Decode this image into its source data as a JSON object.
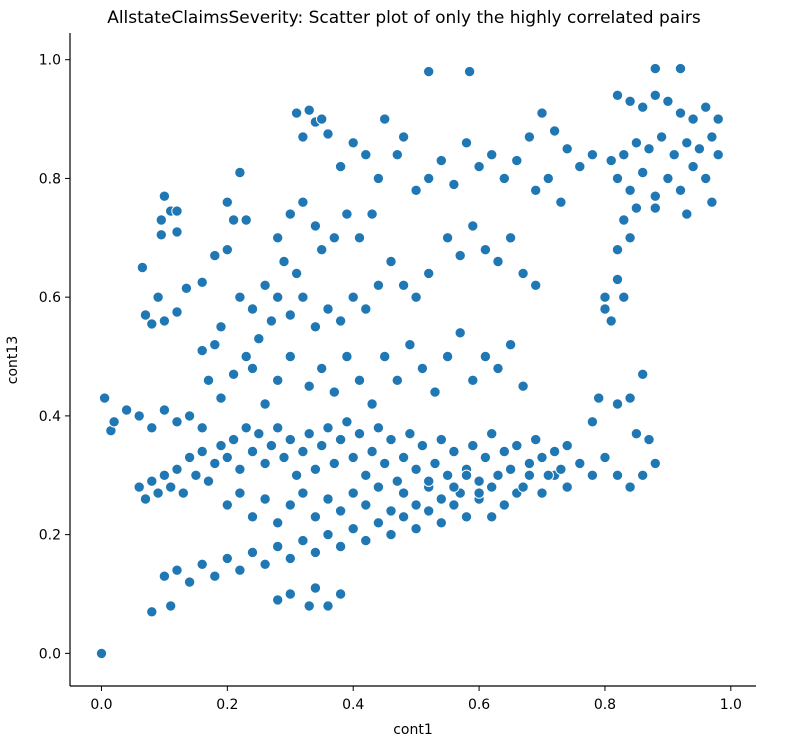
{
  "chart_data": {
    "type": "scatter",
    "title": "AllstateClaimsSeverity: Scatter plot of only the highly correlated pairs",
    "xlabel": "cont1",
    "ylabel": "cont13",
    "xlim": [
      -0.05,
      1.04
    ],
    "ylim": [
      -0.055,
      1.045
    ],
    "xticks": [
      0.0,
      0.2,
      0.4,
      0.6,
      0.8,
      1.0
    ],
    "yticks": [
      0.0,
      0.2,
      0.4,
      0.6,
      0.8,
      1.0
    ],
    "xtick_labels": [
      "0.0",
      "0.2",
      "0.4",
      "0.6",
      "0.8",
      "1.0"
    ],
    "ytick_labels": [
      "0.0",
      "0.2",
      "0.4",
      "0.6",
      "0.8",
      "1.0"
    ],
    "grid": false,
    "marker_color": "#1f77b4",
    "marker_edge_color": "#ffffff",
    "spines": [
      "left",
      "bottom"
    ],
    "points": [
      [
        0.0,
        0.0
      ],
      [
        0.005,
        0.43
      ],
      [
        0.015,
        0.375
      ],
      [
        0.08,
        0.07
      ],
      [
        0.11,
        0.08
      ],
      [
        0.52,
        0.98
      ],
      [
        0.585,
        0.98
      ],
      [
        0.88,
        0.985
      ],
      [
        0.92,
        0.985
      ],
      [
        0.1,
        0.77
      ],
      [
        0.095,
        0.73
      ],
      [
        0.11,
        0.745
      ],
      [
        0.12,
        0.745
      ],
      [
        0.095,
        0.705
      ],
      [
        0.12,
        0.71
      ],
      [
        0.065,
        0.65
      ],
      [
        0.09,
        0.6
      ],
      [
        0.07,
        0.57
      ],
      [
        0.08,
        0.555
      ],
      [
        0.1,
        0.56
      ],
      [
        0.12,
        0.575
      ],
      [
        0.135,
        0.615
      ],
      [
        0.16,
        0.625
      ],
      [
        0.19,
        0.55
      ],
      [
        0.16,
        0.51
      ],
      [
        0.18,
        0.52
      ],
      [
        0.2,
        0.76
      ],
      [
        0.21,
        0.73
      ],
      [
        0.23,
        0.73
      ],
      [
        0.22,
        0.81
      ],
      [
        0.2,
        0.68
      ],
      [
        0.18,
        0.67
      ],
      [
        0.17,
        0.46
      ],
      [
        0.19,
        0.43
      ],
      [
        0.21,
        0.47
      ],
      [
        0.23,
        0.5
      ],
      [
        0.25,
        0.53
      ],
      [
        0.27,
        0.56
      ],
      [
        0.31,
        0.91
      ],
      [
        0.33,
        0.915
      ],
      [
        0.34,
        0.895
      ],
      [
        0.35,
        0.9
      ],
      [
        0.32,
        0.87
      ],
      [
        0.36,
        0.875
      ],
      [
        0.28,
        0.7
      ],
      [
        0.3,
        0.74
      ],
      [
        0.32,
        0.76
      ],
      [
        0.34,
        0.72
      ],
      [
        0.29,
        0.66
      ],
      [
        0.31,
        0.64
      ],
      [
        0.35,
        0.68
      ],
      [
        0.37,
        0.7
      ],
      [
        0.39,
        0.74
      ],
      [
        0.41,
        0.7
      ],
      [
        0.43,
        0.74
      ],
      [
        0.44,
        0.8
      ],
      [
        0.45,
        0.9
      ],
      [
        0.48,
        0.87
      ],
      [
        0.47,
        0.84
      ],
      [
        0.42,
        0.84
      ],
      [
        0.4,
        0.86
      ],
      [
        0.38,
        0.82
      ],
      [
        0.5,
        0.78
      ],
      [
        0.52,
        0.8
      ],
      [
        0.54,
        0.83
      ],
      [
        0.56,
        0.79
      ],
      [
        0.58,
        0.86
      ],
      [
        0.6,
        0.82
      ],
      [
        0.62,
        0.84
      ],
      [
        0.64,
        0.8
      ],
      [
        0.66,
        0.83
      ],
      [
        0.68,
        0.87
      ],
      [
        0.7,
        0.91
      ],
      [
        0.72,
        0.88
      ],
      [
        0.74,
        0.85
      ],
      [
        0.76,
        0.82
      ],
      [
        0.78,
        0.84
      ],
      [
        0.69,
        0.78
      ],
      [
        0.71,
        0.8
      ],
      [
        0.73,
        0.76
      ],
      [
        0.55,
        0.7
      ],
      [
        0.57,
        0.67
      ],
      [
        0.59,
        0.72
      ],
      [
        0.61,
        0.68
      ],
      [
        0.63,
        0.66
      ],
      [
        0.65,
        0.7
      ],
      [
        0.67,
        0.64
      ],
      [
        0.69,
        0.62
      ],
      [
        0.52,
        0.64
      ],
      [
        0.5,
        0.6
      ],
      [
        0.48,
        0.62
      ],
      [
        0.46,
        0.66
      ],
      [
        0.44,
        0.62
      ],
      [
        0.42,
        0.58
      ],
      [
        0.4,
        0.6
      ],
      [
        0.38,
        0.56
      ],
      [
        0.36,
        0.58
      ],
      [
        0.34,
        0.55
      ],
      [
        0.32,
        0.6
      ],
      [
        0.3,
        0.57
      ],
      [
        0.28,
        0.6
      ],
      [
        0.26,
        0.62
      ],
      [
        0.24,
        0.58
      ],
      [
        0.22,
        0.6
      ],
      [
        0.45,
        0.5
      ],
      [
        0.47,
        0.46
      ],
      [
        0.49,
        0.52
      ],
      [
        0.51,
        0.48
      ],
      [
        0.53,
        0.44
      ],
      [
        0.55,
        0.5
      ],
      [
        0.57,
        0.54
      ],
      [
        0.59,
        0.46
      ],
      [
        0.61,
        0.5
      ],
      [
        0.63,
        0.48
      ],
      [
        0.65,
        0.52
      ],
      [
        0.67,
        0.45
      ],
      [
        0.33,
        0.45
      ],
      [
        0.35,
        0.48
      ],
      [
        0.37,
        0.44
      ],
      [
        0.39,
        0.5
      ],
      [
        0.41,
        0.46
      ],
      [
        0.43,
        0.42
      ],
      [
        0.3,
        0.5
      ],
      [
        0.28,
        0.46
      ],
      [
        0.26,
        0.42
      ],
      [
        0.24,
        0.48
      ],
      [
        0.82,
        0.94
      ],
      [
        0.84,
        0.93
      ],
      [
        0.86,
        0.92
      ],
      [
        0.88,
        0.94
      ],
      [
        0.9,
        0.93
      ],
      [
        0.92,
        0.91
      ],
      [
        0.94,
        0.9
      ],
      [
        0.96,
        0.92
      ],
      [
        0.98,
        0.9
      ],
      [
        0.97,
        0.87
      ],
      [
        0.95,
        0.85
      ],
      [
        0.93,
        0.86
      ],
      [
        0.91,
        0.84
      ],
      [
        0.89,
        0.87
      ],
      [
        0.87,
        0.85
      ],
      [
        0.85,
        0.86
      ],
      [
        0.83,
        0.84
      ],
      [
        0.81,
        0.83
      ],
      [
        0.82,
        0.8
      ],
      [
        0.84,
        0.78
      ],
      [
        0.86,
        0.81
      ],
      [
        0.88,
        0.77
      ],
      [
        0.9,
        0.8
      ],
      [
        0.92,
        0.78
      ],
      [
        0.94,
        0.82
      ],
      [
        0.96,
        0.8
      ],
      [
        0.98,
        0.84
      ],
      [
        0.97,
        0.76
      ],
      [
        0.93,
        0.74
      ],
      [
        0.88,
        0.75
      ],
      [
        0.85,
        0.75
      ],
      [
        0.83,
        0.73
      ],
      [
        0.82,
        0.68
      ],
      [
        0.84,
        0.7
      ],
      [
        0.8,
        0.6
      ],
      [
        0.8,
        0.58
      ],
      [
        0.82,
        0.63
      ],
      [
        0.81,
        0.56
      ],
      [
        0.83,
        0.6
      ],
      [
        0.86,
        0.47
      ],
      [
        0.84,
        0.43
      ],
      [
        0.82,
        0.42
      ],
      [
        0.79,
        0.43
      ],
      [
        0.78,
        0.39
      ],
      [
        0.85,
        0.37
      ],
      [
        0.87,
        0.36
      ],
      [
        0.88,
        0.32
      ],
      [
        0.86,
        0.3
      ],
      [
        0.84,
        0.28
      ],
      [
        0.82,
        0.3
      ],
      [
        0.8,
        0.33
      ],
      [
        0.78,
        0.3
      ],
      [
        0.76,
        0.32
      ],
      [
        0.74,
        0.28
      ],
      [
        0.72,
        0.3
      ],
      [
        0.7,
        0.27
      ],
      [
        0.68,
        0.3
      ],
      [
        0.66,
        0.27
      ],
      [
        0.64,
        0.25
      ],
      [
        0.62,
        0.28
      ],
      [
        0.6,
        0.26
      ],
      [
        0.58,
        0.23
      ],
      [
        0.56,
        0.25
      ],
      [
        0.54,
        0.22
      ],
      [
        0.52,
        0.24
      ],
      [
        0.5,
        0.21
      ],
      [
        0.48,
        0.23
      ],
      [
        0.46,
        0.2
      ],
      [
        0.44,
        0.22
      ],
      [
        0.42,
        0.19
      ],
      [
        0.4,
        0.21
      ],
      [
        0.38,
        0.18
      ],
      [
        0.36,
        0.2
      ],
      [
        0.34,
        0.17
      ],
      [
        0.32,
        0.19
      ],
      [
        0.3,
        0.16
      ],
      [
        0.28,
        0.18
      ],
      [
        0.26,
        0.15
      ],
      [
        0.24,
        0.17
      ],
      [
        0.22,
        0.14
      ],
      [
        0.2,
        0.16
      ],
      [
        0.18,
        0.13
      ],
      [
        0.16,
        0.15
      ],
      [
        0.14,
        0.12
      ],
      [
        0.12,
        0.14
      ],
      [
        0.1,
        0.13
      ],
      [
        0.33,
        0.08
      ],
      [
        0.36,
        0.08
      ],
      [
        0.3,
        0.1
      ],
      [
        0.28,
        0.09
      ],
      [
        0.34,
        0.11
      ],
      [
        0.38,
        0.1
      ],
      [
        0.06,
        0.28
      ],
      [
        0.07,
        0.26
      ],
      [
        0.08,
        0.29
      ],
      [
        0.09,
        0.27
      ],
      [
        0.1,
        0.3
      ],
      [
        0.11,
        0.28
      ],
      [
        0.12,
        0.31
      ],
      [
        0.13,
        0.27
      ],
      [
        0.14,
        0.33
      ],
      [
        0.15,
        0.3
      ],
      [
        0.16,
        0.34
      ],
      [
        0.17,
        0.29
      ],
      [
        0.18,
        0.32
      ],
      [
        0.19,
        0.35
      ],
      [
        0.2,
        0.33
      ],
      [
        0.21,
        0.36
      ],
      [
        0.22,
        0.31
      ],
      [
        0.23,
        0.38
      ],
      [
        0.24,
        0.34
      ],
      [
        0.25,
        0.37
      ],
      [
        0.26,
        0.32
      ],
      [
        0.27,
        0.35
      ],
      [
        0.28,
        0.38
      ],
      [
        0.29,
        0.33
      ],
      [
        0.3,
        0.36
      ],
      [
        0.31,
        0.3
      ],
      [
        0.32,
        0.34
      ],
      [
        0.33,
        0.37
      ],
      [
        0.34,
        0.31
      ],
      [
        0.35,
        0.35
      ],
      [
        0.36,
        0.38
      ],
      [
        0.37,
        0.32
      ],
      [
        0.38,
        0.36
      ],
      [
        0.39,
        0.39
      ],
      [
        0.4,
        0.33
      ],
      [
        0.41,
        0.37
      ],
      [
        0.42,
        0.3
      ],
      [
        0.43,
        0.34
      ],
      [
        0.44,
        0.38
      ],
      [
        0.45,
        0.32
      ],
      [
        0.46,
        0.36
      ],
      [
        0.47,
        0.29
      ],
      [
        0.48,
        0.33
      ],
      [
        0.49,
        0.37
      ],
      [
        0.5,
        0.31
      ],
      [
        0.51,
        0.35
      ],
      [
        0.52,
        0.28
      ],
      [
        0.53,
        0.32
      ],
      [
        0.54,
        0.36
      ],
      [
        0.55,
        0.3
      ],
      [
        0.56,
        0.34
      ],
      [
        0.57,
        0.27
      ],
      [
        0.58,
        0.31
      ],
      [
        0.59,
        0.35
      ],
      [
        0.6,
        0.29
      ],
      [
        0.61,
        0.33
      ],
      [
        0.62,
        0.37
      ],
      [
        0.63,
        0.3
      ],
      [
        0.64,
        0.34
      ],
      [
        0.65,
        0.31
      ],
      [
        0.66,
        0.35
      ],
      [
        0.67,
        0.28
      ],
      [
        0.68,
        0.32
      ],
      [
        0.69,
        0.36
      ],
      [
        0.7,
        0.33
      ],
      [
        0.71,
        0.3
      ],
      [
        0.72,
        0.34
      ],
      [
        0.73,
        0.31
      ],
      [
        0.74,
        0.35
      ],
      [
        0.2,
        0.25
      ],
      [
        0.22,
        0.27
      ],
      [
        0.24,
        0.23
      ],
      [
        0.26,
        0.26
      ],
      [
        0.28,
        0.22
      ],
      [
        0.3,
        0.25
      ],
      [
        0.32,
        0.27
      ],
      [
        0.34,
        0.23
      ],
      [
        0.36,
        0.26
      ],
      [
        0.38,
        0.24
      ],
      [
        0.4,
        0.27
      ],
      [
        0.42,
        0.25
      ],
      [
        0.44,
        0.28
      ],
      [
        0.46,
        0.24
      ],
      [
        0.48,
        0.27
      ],
      [
        0.5,
        0.25
      ],
      [
        0.52,
        0.29
      ],
      [
        0.54,
        0.26
      ],
      [
        0.56,
        0.28
      ],
      [
        0.58,
        0.3
      ],
      [
        0.6,
        0.27
      ],
      [
        0.62,
        0.23
      ],
      [
        0.02,
        0.39
      ],
      [
        0.04,
        0.41
      ],
      [
        0.06,
        0.4
      ],
      [
        0.08,
        0.38
      ],
      [
        0.1,
        0.41
      ],
      [
        0.12,
        0.39
      ],
      [
        0.14,
        0.4
      ],
      [
        0.16,
        0.38
      ]
    ]
  }
}
